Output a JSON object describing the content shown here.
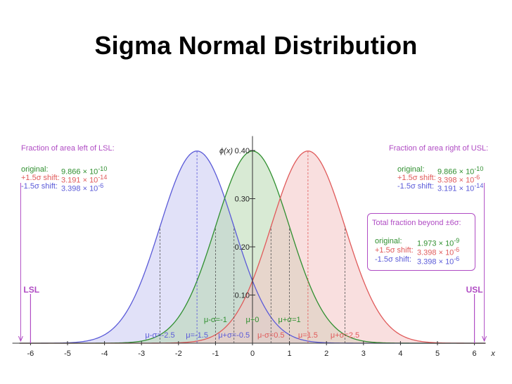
{
  "slide": {
    "title": "Sigma Normal Distribution"
  },
  "colors": {
    "original": "#2f8f2f",
    "plus_shift": "#e05a5a",
    "minus_shift": "#5a5ad8",
    "header": "#b04cc4",
    "limit": "#b04cc4"
  },
  "left_box": {
    "header": "Fraction of area left of LSL:",
    "rows": [
      {
        "label": "original:",
        "mantissa": "9.866 × 10",
        "exp": "-10"
      },
      {
        "label": "+1.5σ shift:",
        "mantissa": "3.191 × 10",
        "exp": "-14"
      },
      {
        "label": "-1.5σ shift:",
        "mantissa": "3.398 × 10",
        "exp": "-6"
      }
    ]
  },
  "right_box": {
    "header": "Fraction of area right of USL:",
    "rows": [
      {
        "label": "original:",
        "mantissa": "9.866 × 10",
        "exp": "-10"
      },
      {
        "label": "+1.5σ shift:",
        "mantissa": "3.398 × 10",
        "exp": "-6"
      },
      {
        "label": "-1.5σ shift:",
        "mantissa": "3.191 × 10",
        "exp": "-14"
      }
    ]
  },
  "total_box": {
    "header": "Total fraction beyond ±6σ:",
    "rows": [
      {
        "label": "original:",
        "mantissa": "1.973 × 10",
        "exp": "-9"
      },
      {
        "label": "+1.5σ shift:",
        "mantissa": "3.398 × 10",
        "exp": "-6"
      },
      {
        "label": "-1.5σ shift:",
        "mantissa": "3.398 × 10",
        "exp": "-6"
      }
    ]
  },
  "chart_data": {
    "type": "area",
    "title": "",
    "xlabel": "x",
    "ylabel": "ϕ(x)",
    "xlim": [
      -6.3,
      6.3
    ],
    "ylim": [
      0,
      0.4
    ],
    "x_ticks": [
      -6,
      -5,
      -4,
      -3,
      -2,
      -1,
      0,
      1,
      2,
      3,
      4,
      5,
      6
    ],
    "y_ticks": [
      0.1,
      0.2,
      0.3,
      0.4
    ],
    "y_tick_labels": [
      "0.10",
      "0.20",
      "0.30",
      "0.40"
    ],
    "series": [
      {
        "mean": -1.5,
        "sd": 1,
        "color": "#5a5ad8",
        "fill": "#c8c8f2"
      },
      {
        "mean": 0,
        "sd": 1,
        "color": "#2f8f2f",
        "fill": "#b8d8b0"
      },
      {
        "mean": 1.5,
        "sd": 1,
        "color": "#e05a5a",
        "fill": "#f4c4c4"
      }
    ],
    "limits": [
      {
        "label": "LSL",
        "x": -6
      },
      {
        "label": "USL",
        "x": 6
      }
    ],
    "annotations": [
      {
        "text": "μ-σ=-1",
        "x": -1,
        "row": 1,
        "color": "#2f8f2f"
      },
      {
        "text": "μ+0",
        "x": 0,
        "row": 1,
        "color": "#2f8f2f"
      },
      {
        "text": "μ+σ=1",
        "x": 1,
        "row": 1,
        "color": "#2f8f2f"
      },
      {
        "text": "μ-σ=-2.5",
        "x": -2.5,
        "row": 2,
        "color": "#5a5ad8"
      },
      {
        "text": "μ=-1.5",
        "x": -1.5,
        "row": 2,
        "color": "#5a5ad8"
      },
      {
        "text": "μ+σ=-0.5",
        "x": -0.5,
        "row": 2,
        "color": "#5a5ad8"
      },
      {
        "text": "μ-σ=0.5",
        "x": 0.5,
        "row": 2,
        "color": "#e05a5a"
      },
      {
        "text": "μ=1.5",
        "x": 1.5,
        "row": 2,
        "color": "#e05a5a"
      },
      {
        "text": "μ+σ=2.5",
        "x": 2.5,
        "row": 2,
        "color": "#e05a5a"
      }
    ]
  }
}
